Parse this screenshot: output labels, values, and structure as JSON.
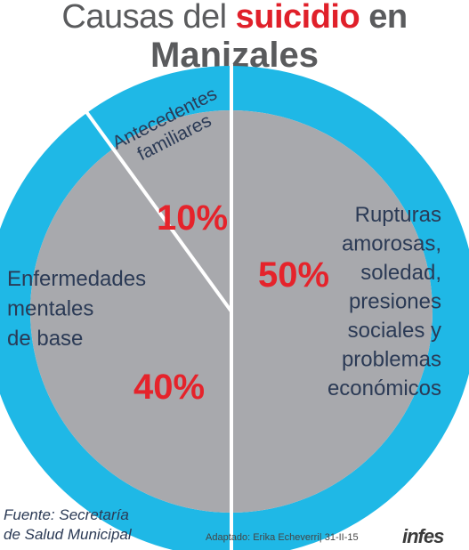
{
  "title": {
    "part1": "Causas del ",
    "highlight": "suicidio",
    "part2": " en",
    "line2": "Manizales"
  },
  "chart_data": {
    "type": "pie",
    "title": "Causas del suicidio en Manizales",
    "slices": [
      {
        "label": "Rupturas amorosas, soledad, presiones sociales y problemas económicos",
        "label_lines": [
          "Rupturas",
          "amorosas,",
          "soledad,",
          "presiones",
          "sociales y",
          "problemas",
          "económicos"
        ],
        "value": 50,
        "value_label": "50%"
      },
      {
        "label": "Enfermedades mentales de base",
        "label_lines": [
          "Enfermedades",
          "mentales",
          "de base"
        ],
        "value": 40,
        "value_label": "40%"
      },
      {
        "label": "Antecedentes familiares",
        "label_lines": [
          "Antecedentes",
          "familiares"
        ],
        "value": 10,
        "value_label": "10%"
      }
    ]
  },
  "footer": {
    "source": "Fuente: Secretaría\nde Salud Municipal",
    "credit": "Adaptado: Erika Echeverri| 31-II-15",
    "logo": "infes"
  },
  "colors": {
    "title_gray": "#5a5b5d",
    "accent_red": "#e0202a",
    "ring_blue": "#1fb8e6",
    "slice_gray": "#a8a9ad",
    "divider": "#ffffff",
    "label_text": "#2b3a55",
    "value_red": "#e5232b"
  }
}
